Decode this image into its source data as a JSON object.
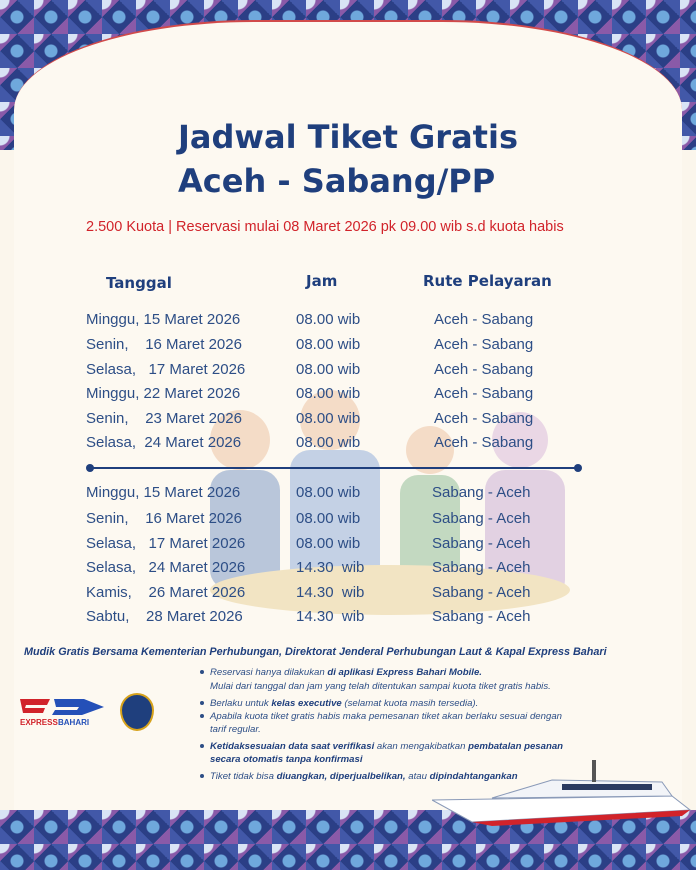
{
  "title_line1": "Jadwal Tiket Gratis",
  "title_line2": "Aceh - Sabang/PP",
  "subtitle": "2.500 Kuota | Reservasi mulai 08 Maret 2026 pk 09.00 wib s.d kuota habis",
  "headers": {
    "date": "Tanggal",
    "time": "Jam",
    "route": "Rute Pelayaran"
  },
  "outbound": [
    {
      "date": "Minggu, 15 Maret 2026",
      "time": "08.00 wib",
      "route": "Aceh - Sabang"
    },
    {
      "date": "Senin,    16 Maret 2026",
      "time": "08.00 wib",
      "route": "Aceh - Sabang"
    },
    {
      "date": "Selasa,   17 Maret 2026",
      "time": "08.00 wib",
      "route": "Aceh - Sabang"
    },
    {
      "date": "Minggu, 22 Maret 2026",
      "time": "08.00 wib",
      "route": "Aceh - Sabang"
    },
    {
      "date": "Senin,    23 Maret 2026",
      "time": "08.00 wib",
      "route": "Aceh - Sabang"
    },
    {
      "date": "Selasa,  24 Maret 2026",
      "time": "08.00 wib",
      "route": "Aceh - Sabang"
    }
  ],
  "return": [
    {
      "date": "Minggu, 15 Maret 2026",
      "time": "08.00 wib",
      "route": "Sabang - Aceh"
    },
    {
      "date": "Senin,    16 Maret 2026",
      "time": "08.00 wib",
      "route": "Sabang - Aceh"
    },
    {
      "date": "Selasa,   17 Maret 2026",
      "time": "08.00 wib",
      "route": "Sabang - Aceh"
    },
    {
      "date": "Selasa,   24 Maret 2026",
      "time": "14.30  wib",
      "route": "Sabang - Aceh"
    },
    {
      "date": "Kamis,    26 Maret 2026",
      "time": "14.30  wib",
      "route": "Sabang - Aceh"
    },
    {
      "date": "Sabtu,    28 Maret 2026",
      "time": "14.30  wib",
      "route": "Sabang - Aceh"
    }
  ],
  "partners": "Mudik Gratis Bersama Kementerian Perhubungan, Direktorat Jenderal Perhubungan Laut & Kapal Express Bahari",
  "logo_text": "EXPRESS BAHARI",
  "notes": {
    "n1a": "Reservasi hanya dilakukan ",
    "n1b": "di aplikasi Express Bahari Mobile.",
    "n1c": "Mulai dari tanggal dan jam yang telah ditentukan sampai kuota tiket gratis habis.",
    "n2a": "Berlaku untuk ",
    "n2b": "kelas executive",
    "n2c": " (selamat kuota masih tersedia).",
    "n3a": "Apabila kuota tiket gratis habis maka pemesanan tiket akan berlaku sesuai dengan",
    "n3b": "tarif regular.",
    "n4a": "Ketidaksesuaian data saat verifikasi",
    "n4b": " akan mengakibatkan ",
    "n4c": "pembatalan pesanan",
    "n4d": "secara otomatis tanpa konfirmasi",
    "n5a": "Tiket tidak bisa ",
    "n5b": "diuangkan, diperjualbelikan,",
    "n5c": " atau ",
    "n5d": "dipindahtangankan"
  },
  "colors": {
    "title": "#1f3f7d",
    "accent": "#d1232a",
    "background": "#fbf6ec"
  }
}
